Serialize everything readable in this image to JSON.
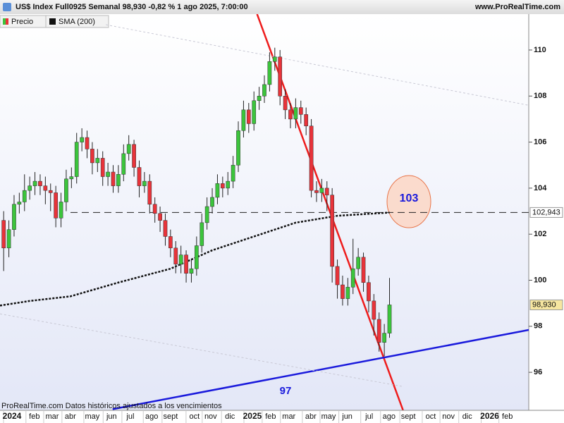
{
  "chart_data": {
    "type": "candlestick",
    "title": "US$ Index Full0925 Semanal 98,930 -0,82 % 1 ago 2025, 7:00:00",
    "source": "www.ProRealTime.com",
    "footer": "ProRealTime.com  Datos históricos ajustados a los vencimientos",
    "legend": [
      "Precio",
      "SMA (200)"
    ],
    "up_color": "#3cc43c",
    "down_color": "#e8333a",
    "open": [
      102.6,
      101.4,
      102.2,
      103.3,
      103.4,
      103.9,
      104.1,
      104.3,
      104.1,
      103.9,
      103.8,
      102.7,
      103.4,
      104.4,
      104.5,
      106.0,
      106.2,
      105.7,
      105.1,
      105.3,
      104.5,
      104.7,
      104.1,
      104.6,
      105.5,
      105.9,
      104.9,
      104.1,
      104.3,
      103.3,
      102.9,
      102.6,
      101.9,
      101.4,
      100.7,
      101.1,
      100.3,
      100.5,
      101.5,
      102.5,
      103.2,
      103.6,
      104.2,
      104.0,
      104.3,
      105.0,
      106.5,
      107.4,
      106.8,
      107.8,
      108.0,
      108.5,
      109.5,
      109.7,
      108.0,
      107.4,
      107.0,
      107.5,
      107.2,
      106.7,
      103.9,
      103.8,
      104.0,
      103.7,
      100.6,
      99.8,
      99.2,
      99.7,
      100.5,
      101.0,
      99.9,
      99.1,
      98.3,
      97.3,
      97.7
    ],
    "high": [
      103.0,
      102.6,
      103.7,
      103.8,
      104.6,
      104.5,
      104.7,
      104.6,
      104.5,
      104.2,
      104.1,
      103.8,
      104.8,
      104.9,
      106.4,
      106.6,
      106.5,
      106.0,
      105.7,
      105.6,
      105.1,
      105.0,
      105.0,
      105.9,
      106.3,
      106.1,
      105.2,
      104.7,
      104.6,
      103.6,
      103.2,
      102.9,
      102.2,
      101.7,
      101.5,
      101.3,
      100.9,
      101.9,
      102.9,
      103.6,
      104.0,
      104.6,
      104.5,
      104.7,
      105.4,
      106.9,
      107.8,
      107.7,
      108.2,
      108.4,
      108.9,
      109.9,
      110.1,
      110.0,
      108.3,
      107.7,
      107.9,
      107.8,
      107.5,
      107.0,
      104.3,
      104.4,
      104.3,
      104.0,
      100.9,
      100.2,
      100.1,
      101.8,
      101.4,
      101.2,
      100.2,
      99.4,
      98.6,
      98.1,
      100.1
    ],
    "low": [
      100.4,
      101.0,
      101.9,
      102.9,
      103.0,
      103.5,
      103.7,
      103.7,
      103.3,
      103.0,
      102.3,
      102.3,
      103.0,
      104.0,
      104.2,
      105.6,
      105.3,
      104.6,
      104.7,
      104.1,
      104.1,
      103.8,
      103.8,
      104.3,
      105.2,
      104.5,
      103.6,
      103.8,
      102.9,
      102.5,
      102.1,
      101.5,
      101.0,
      100.3,
      100.3,
      99.9,
      99.9,
      100.2,
      101.2,
      102.2,
      102.9,
      103.3,
      103.6,
      103.7,
      104.0,
      104.7,
      106.2,
      106.4,
      106.5,
      107.4,
      107.7,
      108.2,
      109.1,
      107.6,
      107.0,
      106.6,
      106.6,
      106.8,
      106.3,
      103.6,
      103.4,
      103.4,
      103.0,
      99.9,
      99.2,
      98.9,
      98.9,
      99.4,
      100.2,
      99.5,
      98.6,
      97.6,
      96.9,
      96.7,
      97.5
    ],
    "close": [
      101.4,
      102.2,
      103.3,
      103.4,
      103.9,
      104.1,
      104.3,
      104.1,
      103.9,
      103.8,
      102.7,
      103.4,
      104.4,
      104.5,
      106.0,
      106.2,
      105.7,
      105.1,
      105.3,
      104.5,
      104.7,
      104.1,
      104.6,
      105.5,
      105.9,
      104.9,
      104.1,
      104.3,
      103.3,
      102.9,
      102.6,
      101.9,
      101.4,
      100.7,
      101.1,
      100.3,
      100.5,
      101.5,
      102.5,
      103.2,
      103.6,
      104.2,
      104.0,
      104.3,
      105.0,
      106.5,
      107.4,
      106.8,
      107.8,
      108.0,
      108.5,
      109.5,
      109.7,
      108.0,
      107.4,
      107.0,
      107.5,
      107.2,
      106.7,
      103.9,
      103.8,
      104.0,
      103.7,
      100.6,
      99.8,
      99.2,
      99.7,
      100.5,
      101.0,
      99.9,
      99.1,
      98.3,
      97.3,
      97.7,
      98.93
    ],
    "sma": {
      "name": "SMA (200)",
      "color": "#111111",
      "x": [
        -0.7,
        5,
        12.8,
        22,
        32,
        40,
        48,
        56,
        64,
        74
      ],
      "values": [
        98.9,
        99.1,
        99.3,
        99.9,
        100.5,
        101.3,
        101.9,
        102.5,
        102.8,
        102.94
      ]
    },
    "trendlines": [
      {
        "color": "#ee1c1c",
        "x": [
          48.6,
          76.6
        ],
        "values": [
          111.56,
          94.35
        ]
      },
      {
        "color": "#1a1adc",
        "x": [
          20.9,
          100.7
        ],
        "values": [
          94.4,
          97.84
        ]
      },
      {
        "color": "#c8c8d4",
        "x": [
          19.6,
          100.7
        ],
        "values": [
          111.1,
          107.6
        ]
      },
      {
        "color": "#c8c8d4",
        "x": [
          -0.7,
          76.4
        ],
        "values": [
          98.54,
          95.39
        ]
      }
    ],
    "hline": {
      "value": 102.943,
      "label": "102,943"
    },
    "last_price": {
      "value": 98.93,
      "label": "98,930"
    },
    "annotations": [
      "103",
      "97"
    ],
    "xlim": [
      -0.7,
      100.7
    ],
    "ylim": [
      94.35,
      111.56
    ],
    "yticks": [
      96,
      98,
      100,
      102,
      104,
      106,
      108,
      110
    ],
    "xticks": [
      {
        "value": 1.6,
        "label": "2024"
      },
      {
        "value": 5.9,
        "label": "feb"
      },
      {
        "value": 9.3,
        "label": "mar"
      },
      {
        "value": 12.8,
        "label": "abr"
      },
      {
        "value": 17.0,
        "label": "may"
      },
      {
        "value": 20.7,
        "label": "jun"
      },
      {
        "value": 24.3,
        "label": "jul"
      },
      {
        "value": 28.4,
        "label": "ago"
      },
      {
        "value": 32.0,
        "label": "sept"
      },
      {
        "value": 36.6,
        "label": "oct"
      },
      {
        "value": 39.7,
        "label": "nov"
      },
      {
        "value": 43.4,
        "label": "dic"
      },
      {
        "value": 47.7,
        "label": "2025"
      },
      {
        "value": 51.2,
        "label": "feb"
      },
      {
        "value": 54.7,
        "label": "mar"
      },
      {
        "value": 58.9,
        "label": "abr"
      },
      {
        "value": 62.3,
        "label": "may"
      },
      {
        "value": 65.9,
        "label": "jun"
      },
      {
        "value": 70.1,
        "label": "jul"
      },
      {
        "value": 73.9,
        "label": "ago"
      },
      {
        "value": 77.6,
        "label": "sept"
      },
      {
        "value": 81.9,
        "label": "oct"
      },
      {
        "value": 85.3,
        "label": "nov"
      },
      {
        "value": 88.9,
        "label": "dic"
      },
      {
        "value": 93.2,
        "label": "2026"
      },
      {
        "value": 96.6,
        "label": "feb"
      }
    ]
  }
}
